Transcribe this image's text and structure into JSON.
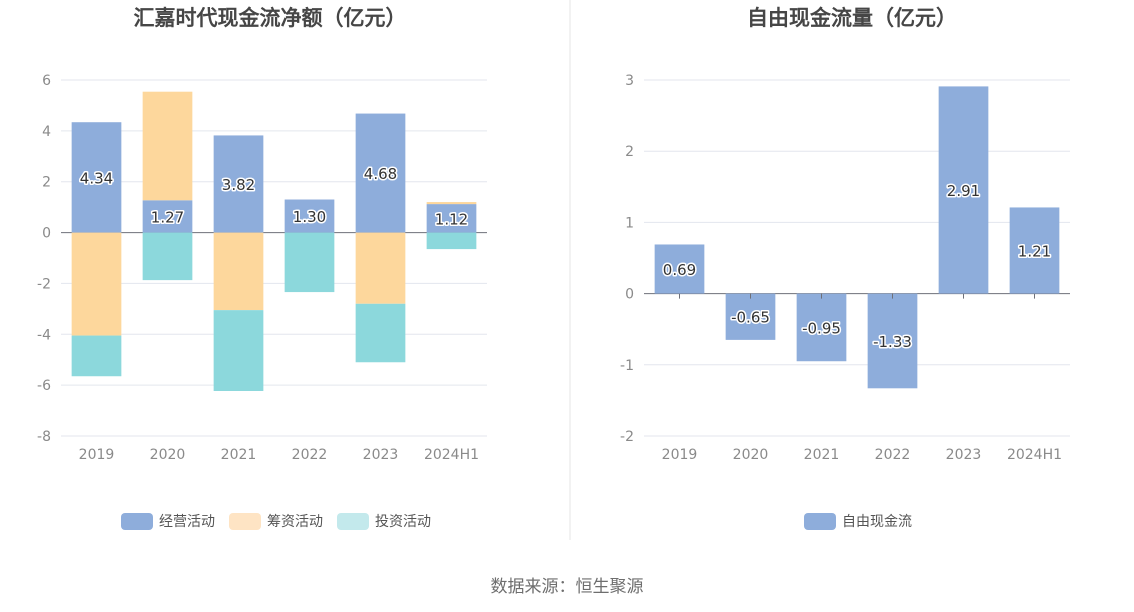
{
  "source_text": "数据来源：恒生聚源",
  "chart_data": [
    {
      "type": "bar",
      "stacked": true,
      "title": "汇嘉时代现金流净额（亿元）",
      "categories": [
        "2019",
        "2020",
        "2021",
        "2022",
        "2023",
        "2024H1"
      ],
      "ylim": [
        -8,
        6
      ],
      "yticks": [
        6,
        4,
        2,
        0,
        -2,
        -4,
        -6,
        -8
      ],
      "grid": true,
      "legend_position": "bottom",
      "series": [
        {
          "name": "经营活动",
          "color": "#8eaddb",
          "values": [
            4.34,
            1.27,
            3.82,
            1.3,
            4.68,
            1.12
          ]
        },
        {
          "name": "筹资活动",
          "color": "#fdd79c",
          "values": [
            -4.05,
            4.27,
            -3.05,
            0.0,
            -2.8,
            0.08
          ]
        },
        {
          "name": "投资活动",
          "color": "#8cd8dc",
          "values": [
            -1.6,
            -1.87,
            -3.18,
            -2.34,
            -2.3,
            -0.65
          ]
        }
      ],
      "legend_colors": [
        "#8eaddb",
        "#fee4c4",
        "#c3e9ec"
      ],
      "data_labels": [
        "4.34",
        "1.27",
        "3.82",
        "1.30",
        "4.68",
        "1.12"
      ]
    },
    {
      "type": "bar",
      "title": "自由现金流量（亿元）",
      "categories": [
        "2019",
        "2020",
        "2021",
        "2022",
        "2023",
        "2024H1"
      ],
      "ylim": [
        -2,
        3
      ],
      "yticks": [
        3,
        2,
        1,
        0,
        -1,
        -2
      ],
      "grid": true,
      "legend_position": "bottom",
      "series": [
        {
          "name": "自由现金流",
          "color": "#8eaddb",
          "values": [
            0.69,
            -0.65,
            -0.95,
            -1.33,
            2.91,
            1.21
          ]
        }
      ],
      "data_labels": [
        "0.69",
        "-0.65",
        "-0.95",
        "-1.33",
        "2.91",
        "1.21"
      ]
    }
  ]
}
